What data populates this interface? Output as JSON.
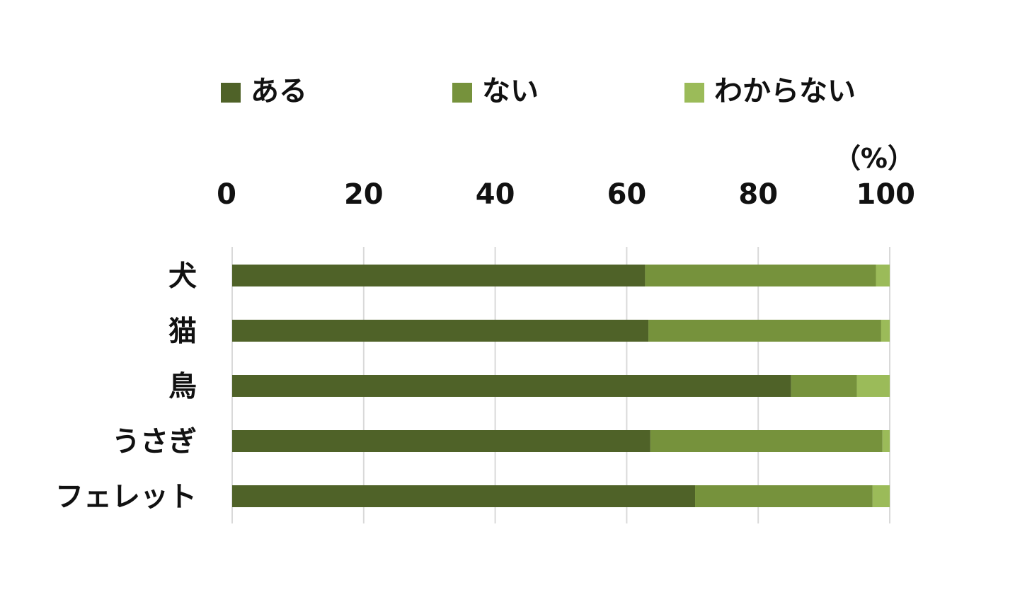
{
  "chart_data": {
    "type": "bar",
    "orientation": "horizontal",
    "stacked": true,
    "categories": [
      "犬",
      "猫",
      "鳥",
      "うさぎ",
      "フェレット"
    ],
    "series": [
      {
        "name": "ある",
        "color": "#4f6228",
        "values": [
          62.8,
          63.3,
          85.0,
          63.6,
          70.4
        ]
      },
      {
        "name": "ない",
        "color": "#76923c",
        "values": [
          35.1,
          35.4,
          10.0,
          35.3,
          27.0
        ]
      },
      {
        "name": "わからない",
        "color": "#9bbb59",
        "values": [
          2.1,
          1.3,
          5.0,
          1.1,
          2.6
        ]
      }
    ],
    "x_ticks": [
      "0",
      "20",
      "40",
      "60",
      "80",
      "100"
    ],
    "xlim": [
      0,
      100
    ],
    "x_unit": "（%）",
    "x_axis_position": "top",
    "grid": true,
    "legend_position": "top"
  }
}
